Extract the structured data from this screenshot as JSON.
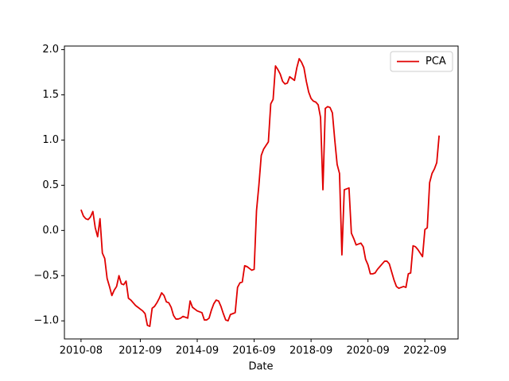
{
  "chart_data": {
    "type": "line",
    "x_label": "Date",
    "x": [
      "2010-08",
      "2010-09",
      "2010-10",
      "2010-11",
      "2010-12",
      "2011-01",
      "2011-02",
      "2011-03",
      "2011-04",
      "2011-05",
      "2011-06",
      "2011-07",
      "2011-08",
      "2011-09",
      "2011-10",
      "2011-11",
      "2011-12",
      "2012-01",
      "2012-02",
      "2012-03",
      "2012-04",
      "2012-05",
      "2012-06",
      "2012-07",
      "2012-08",
      "2012-09",
      "2012-10",
      "2012-11",
      "2012-12",
      "2013-01",
      "2013-02",
      "2013-03",
      "2013-04",
      "2013-05",
      "2013-06",
      "2013-07",
      "2013-08",
      "2013-09",
      "2013-10",
      "2013-11",
      "2013-12",
      "2014-01",
      "2014-02",
      "2014-03",
      "2014-04",
      "2014-05",
      "2014-06",
      "2014-07",
      "2014-08",
      "2014-09",
      "2014-10",
      "2014-11",
      "2014-12",
      "2015-01",
      "2015-02",
      "2015-03",
      "2015-04",
      "2015-05",
      "2015-06",
      "2015-07",
      "2015-08",
      "2015-09",
      "2015-10",
      "2015-11",
      "2015-12",
      "2016-01",
      "2016-02",
      "2016-03",
      "2016-04",
      "2016-05",
      "2016-06",
      "2016-07",
      "2016-08",
      "2016-09",
      "2016-10",
      "2016-11",
      "2016-12",
      "2017-01",
      "2017-02",
      "2017-03",
      "2017-04",
      "2017-05",
      "2017-06",
      "2017-07",
      "2017-08",
      "2017-09",
      "2017-10",
      "2017-11",
      "2017-12",
      "2018-01",
      "2018-02",
      "2018-03",
      "2018-04",
      "2018-05",
      "2018-06",
      "2018-07",
      "2018-08",
      "2018-09",
      "2018-10",
      "2018-11",
      "2018-12",
      "2019-01",
      "2019-02",
      "2019-03",
      "2019-04",
      "2019-05",
      "2019-06",
      "2019-07",
      "2019-08",
      "2019-09",
      "2019-10",
      "2019-11",
      "2019-12",
      "2020-01",
      "2020-02",
      "2020-03",
      "2020-04",
      "2020-05",
      "2020-06",
      "2020-07",
      "2020-08",
      "2020-09",
      "2020-10",
      "2020-11",
      "2020-12",
      "2021-01",
      "2021-02",
      "2021-03",
      "2021-04",
      "2021-05",
      "2021-06",
      "2021-07",
      "2021-08",
      "2021-09",
      "2021-10",
      "2021-11",
      "2021-12",
      "2022-01",
      "2022-02",
      "2022-03",
      "2022-04",
      "2022-05",
      "2022-06",
      "2022-07",
      "2022-08",
      "2022-09",
      "2022-10",
      "2022-11",
      "2022-12",
      "2023-01",
      "2023-02",
      "2023-03"
    ],
    "series": [
      {
        "name": "PCA",
        "color": "#e00000",
        "values": [
          0.23,
          0.16,
          0.13,
          0.12,
          0.15,
          0.21,
          0.03,
          -0.07,
          0.13,
          -0.25,
          -0.31,
          -0.53,
          -0.62,
          -0.72,
          -0.66,
          -0.62,
          -0.5,
          -0.59,
          -0.6,
          -0.56,
          -0.75,
          -0.77,
          -0.8,
          -0.83,
          -0.85,
          -0.87,
          -0.89,
          -0.92,
          -1.05,
          -1.06,
          -0.86,
          -0.84,
          -0.8,
          -0.75,
          -0.69,
          -0.72,
          -0.79,
          -0.8,
          -0.85,
          -0.94,
          -0.98,
          -0.98,
          -0.97,
          -0.95,
          -0.96,
          -0.97,
          -0.78,
          -0.85,
          -0.87,
          -0.89,
          -0.9,
          -0.91,
          -0.99,
          -0.99,
          -0.97,
          -0.88,
          -0.81,
          -0.77,
          -0.78,
          -0.84,
          -0.92,
          -0.99,
          -1.0,
          -0.93,
          -0.92,
          -0.91,
          -0.63,
          -0.58,
          -0.57,
          -0.39,
          -0.4,
          -0.42,
          -0.44,
          -0.43,
          0.22,
          0.5,
          0.83,
          0.9,
          0.94,
          0.98,
          1.4,
          1.45,
          1.82,
          1.78,
          1.73,
          1.65,
          1.62,
          1.63,
          1.7,
          1.68,
          1.66,
          1.8,
          1.9,
          1.86,
          1.8,
          1.65,
          1.53,
          1.46,
          1.43,
          1.42,
          1.39,
          1.25,
          0.45,
          1.35,
          1.37,
          1.36,
          1.3,
          1.0,
          0.73,
          0.63,
          -0.27,
          0.45,
          0.46,
          0.47,
          -0.03,
          -0.09,
          -0.16,
          -0.15,
          -0.14,
          -0.18,
          -0.32,
          -0.38,
          -0.48,
          -0.48,
          -0.47,
          -0.43,
          -0.4,
          -0.37,
          -0.34,
          -0.34,
          -0.37,
          -0.46,
          -0.55,
          -0.62,
          -0.64,
          -0.63,
          -0.62,
          -0.63,
          -0.48,
          -0.47,
          -0.17,
          -0.18,
          -0.21,
          -0.25,
          -0.29,
          0.01,
          0.03,
          0.53,
          0.63,
          0.68,
          0.75,
          1.05
        ]
      }
    ],
    "xlim": [
      "2010-01",
      "2023-11"
    ],
    "xticks": [
      "2010-08",
      "2012-09",
      "2014-09",
      "2016-09",
      "2018-09",
      "2020-09",
      "2022-09"
    ],
    "ylim": [
      -1.2,
      2.04
    ],
    "yticks": [
      {
        "value": -1,
        "label": "−1.0"
      },
      {
        "value": -0.5,
        "label": "−0.5"
      },
      {
        "value": 0,
        "label": "0.0"
      },
      {
        "value": 0.5,
        "label": "0.5"
      },
      {
        "value": 1,
        "label": "1.0"
      },
      {
        "value": 1.5,
        "label": "1.5"
      },
      {
        "value": 2,
        "label": "2.0"
      }
    ],
    "legend": "upper right"
  }
}
